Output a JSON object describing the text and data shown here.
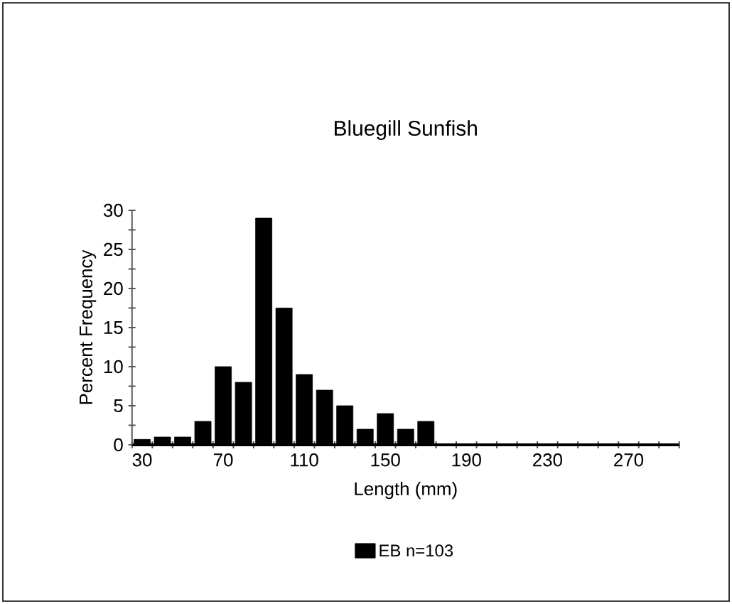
{
  "chart_data": {
    "type": "bar",
    "title": "Bluegill Sunfish",
    "xlabel": "Length (mm)",
    "ylabel": "Percent Frequency",
    "categories": [
      "30",
      null,
      null,
      null,
      "70",
      null,
      null,
      null,
      "110",
      null,
      null,
      null,
      "150",
      null,
      null,
      null,
      "190",
      null,
      null,
      null,
      "230",
      null,
      null,
      null,
      "270",
      null,
      null
    ],
    "series": [
      {
        "name": "EB n=103",
        "color": "#000000",
        "values": [
          0.7,
          1,
          1,
          3,
          10,
          8,
          29,
          17.5,
          9,
          7,
          5,
          2,
          4,
          2,
          3,
          0,
          0,
          0,
          0,
          0,
          0,
          0,
          0,
          0,
          0,
          0,
          0
        ]
      }
    ],
    "ylim": [
      0,
      30
    ],
    "yticks": [
      0,
      5,
      10,
      15,
      20,
      25,
      30
    ],
    "legend": "bottom",
    "grid": false
  }
}
